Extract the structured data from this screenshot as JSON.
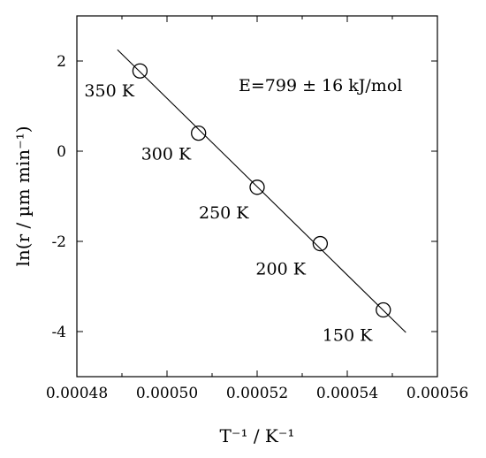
{
  "chart_data": {
    "type": "scatter",
    "title": "",
    "xlabel": "T⁻¹ / K⁻¹",
    "ylabel": "ln(r / µm min⁻¹)",
    "xlim": [
      0.00048,
      0.00056
    ],
    "ylim": [
      -5,
      3
    ],
    "xticks": [
      0.00048,
      0.0005,
      0.00052,
      0.00054,
      0.00056
    ],
    "xtick_labels": [
      "0.00048",
      "0.00050",
      "0.00052",
      "0.00054",
      "0.00056"
    ],
    "yticks": [
      -4,
      -2,
      0,
      2
    ],
    "ytick_labels": [
      "-4",
      "-2",
      "0",
      "2"
    ],
    "grid": false,
    "legend": "none",
    "series": [
      {
        "x": [
          0.000494,
          0.000507,
          0.00052,
          0.000534,
          0.000548
        ],
        "y": [
          1.78,
          0.4,
          -0.8,
          -2.05,
          -3.52
        ],
        "marker": "open-circle",
        "point_labels": [
          "350 K",
          "300 K",
          "250 K",
          "200 K",
          "150 K"
        ]
      }
    ],
    "fit_line": {
      "x": [
        0.000489,
        0.000553
      ],
      "y": [
        2.25,
        -4.02
      ]
    },
    "annotations": [
      {
        "text": "E=799 ± 16 kJ/mol"
      }
    ]
  }
}
